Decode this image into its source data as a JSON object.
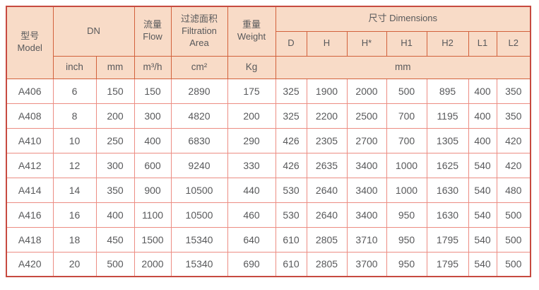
{
  "colors": {
    "header_bg": "#f8dbc7",
    "header_border": "#d2613c",
    "data_border": "#ec8d83",
    "outer_border": "#c74a40",
    "text": "#58595b",
    "page_bg": "#ffffff"
  },
  "table": {
    "header": {
      "model": "型号\nModel",
      "dn": "DN",
      "flow": "流量\nFlow",
      "filtration_area": "过滤面积\nFiltration\nArea",
      "weight": "重量\nWeight",
      "dimensions": "尺寸 Dimensions",
      "dimension_columns": [
        "D",
        "H",
        "H*",
        "H1",
        "H2",
        "L1",
        "L2"
      ],
      "units": {
        "inch": "inch",
        "mm": "mm",
        "flow": "m³/h",
        "area": "cm²",
        "weight": "Kg",
        "dimensions": "mm"
      }
    },
    "rows": [
      [
        "A406",
        "6",
        "150",
        "150",
        "2890",
        "175",
        "325",
        "1900",
        "2000",
        "500",
        "895",
        "400",
        "350"
      ],
      [
        "A408",
        "8",
        "200",
        "300",
        "4820",
        "200",
        "325",
        "2200",
        "2500",
        "700",
        "1195",
        "400",
        "350"
      ],
      [
        "A410",
        "10",
        "250",
        "400",
        "6830",
        "290",
        "426",
        "2305",
        "2700",
        "700",
        "1305",
        "400",
        "420"
      ],
      [
        "A412",
        "12",
        "300",
        "600",
        "9240",
        "330",
        "426",
        "2635",
        "3400",
        "1000",
        "1625",
        "540",
        "420"
      ],
      [
        "A414",
        "14",
        "350",
        "900",
        "10500",
        "440",
        "530",
        "2640",
        "3400",
        "1000",
        "1630",
        "540",
        "480"
      ],
      [
        "A416",
        "16",
        "400",
        "1100",
        "10500",
        "460",
        "530",
        "2640",
        "3400",
        "950",
        "1630",
        "540",
        "500"
      ],
      [
        "A418",
        "18",
        "450",
        "1500",
        "15340",
        "640",
        "610",
        "2805",
        "3710",
        "950",
        "1795",
        "540",
        "500"
      ],
      [
        "A420",
        "20",
        "500",
        "2000",
        "15340",
        "690",
        "610",
        "2805",
        "3700",
        "950",
        "1795",
        "540",
        "500"
      ]
    ]
  }
}
